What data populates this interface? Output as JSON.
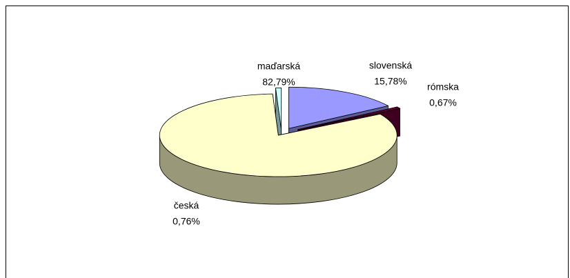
{
  "chart_data": {
    "type": "pie",
    "categories": [
      "slovenská",
      "rómska",
      "maďarská",
      "česká"
    ],
    "values": [
      15.78,
      0.67,
      82.79,
      0.76
    ],
    "value_labels": [
      "15,78%",
      "0,67%",
      "82,79%",
      "0,76%"
    ],
    "colors": [
      "#9999ff",
      "#660033",
      "#ffffcc",
      "#ccffff"
    ]
  }
}
